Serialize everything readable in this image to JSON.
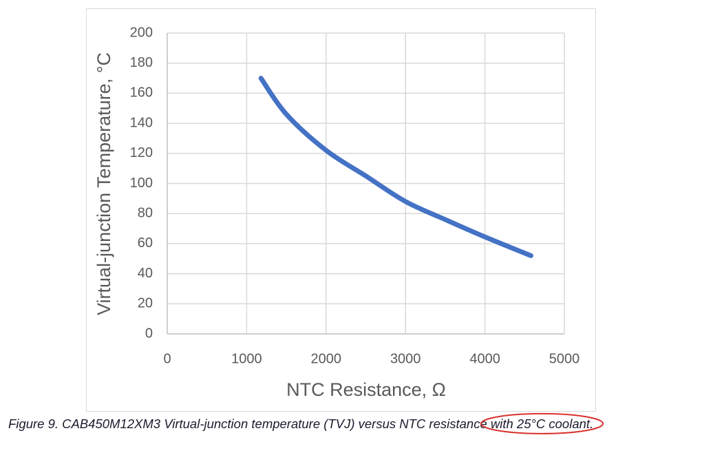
{
  "chart_data": {
    "type": "line",
    "x_label": "NTC Resistance, Ω",
    "y_label": "Virtual-junction Temperature, °C",
    "caption": "Figure 9. CAB450M12XM3 Virtual-junction temperature (TVJ) versus NTC resistance",
    "caption_highlighted": "with 25°C coolant.",
    "series": [
      {
        "color": "#4472c4",
        "x": [
          1180,
          1500,
          2000,
          2500,
          3000,
          3500,
          4000,
          4580
        ],
        "values": [
          170,
          146,
          122,
          105,
          88,
          76,
          64.5,
          52
        ]
      }
    ],
    "xlim": [
      0,
      5000
    ],
    "xticks": [
      0,
      1000,
      2000,
      3000,
      4000,
      5000
    ],
    "ylim": [
      0,
      200
    ],
    "yticks": [
      0,
      20,
      40,
      60,
      80,
      100,
      120,
      140,
      160,
      180,
      200
    ],
    "grid": true
  }
}
